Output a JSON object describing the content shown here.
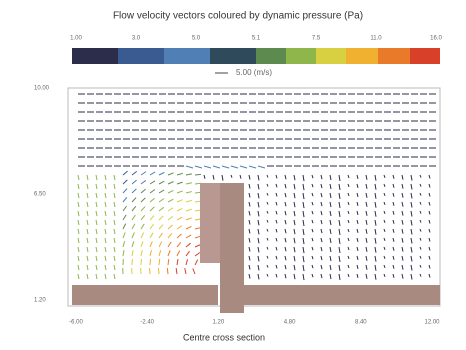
{
  "title": "Flow velocity  vectors  coloured by  dynamic pressure (Pa)",
  "colorbar": {
    "ticks": [
      "1.00",
      "3.0",
      "5.0",
      "5.1",
      "7.5",
      "11.0",
      "16.0"
    ]
  },
  "reference_vector": {
    "label": "5.00  (m/s)"
  },
  "y_axis": {
    "ticks": [
      "10.00",
      "6.50",
      "1.20"
    ]
  },
  "x_axis": {
    "ticks": [
      "-6.00",
      "-2.40",
      "1.20",
      "4.80",
      "8.40",
      "12.00"
    ],
    "label": "Centre cross section"
  }
}
